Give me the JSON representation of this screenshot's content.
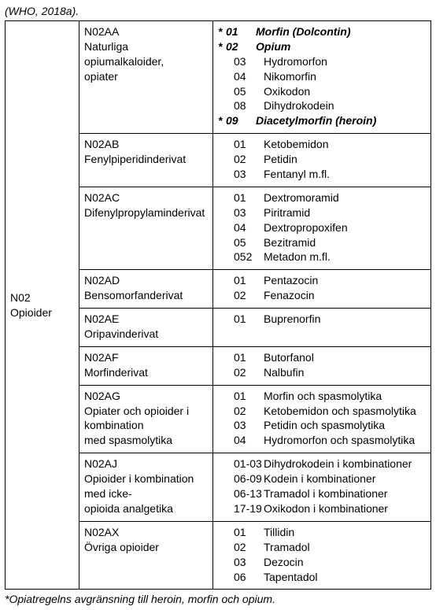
{
  "top_caption": "(WHO, 2018a).",
  "bottom_caption": "*Opiatregelns avgränsning till heroin, morfin och opium.",
  "left_group": {
    "code": "N02",
    "label": "Opioider"
  },
  "rows": [
    {
      "code": "N02AA",
      "desc_lines": [
        "Naturliga  opiumalkaloider,",
        "opiater"
      ],
      "items": [
        {
          "star": true,
          "code": "01",
          "name": "Morfin (Dolcontin)",
          "em": true
        },
        {
          "star": true,
          "code": "02",
          "name": "Opium",
          "em": true
        },
        {
          "star": false,
          "code": "03",
          "name": "Hydromorfon",
          "em": false
        },
        {
          "star": false,
          "code": "04",
          "name": "Nikomorfin",
          "em": false
        },
        {
          "star": false,
          "code": "05",
          "name": "Oxikodon",
          "em": false
        },
        {
          "star": false,
          "code": "08",
          "name": "Dihydrokodein",
          "em": false
        },
        {
          "star": true,
          "code": "09",
          "name": "Diacetylmorfin (heroin)",
          "em": true
        }
      ]
    },
    {
      "code": "N02AB",
      "desc_lines": [
        "Fenylpiperidinderivat"
      ],
      "items": [
        {
          "star": false,
          "code": "01",
          "name": "Ketobemidon",
          "em": false
        },
        {
          "star": false,
          "code": "02",
          "name": "Petidin",
          "em": false
        },
        {
          "star": false,
          "code": "03",
          "name": "Fentanyl  m.fl.",
          "em": false
        }
      ]
    },
    {
      "code": "N02AC",
      "desc_lines": [
        "Difenylpropylaminderivat"
      ],
      "items": [
        {
          "star": false,
          "code": "01",
          "name": "Dextromoramid",
          "em": false
        },
        {
          "star": false,
          "code": "03",
          "name": "Piritramid",
          "em": false
        },
        {
          "star": false,
          "code": "04",
          "name": "Dextropropoxifen",
          "em": false
        },
        {
          "star": false,
          "code": "05",
          "name": "Bezitramid",
          "em": false
        },
        {
          "star": false,
          "code": "052",
          "name": "Metadon m.fl.",
          "em": false
        }
      ]
    },
    {
      "code": "N02AD",
      "desc_lines": [
        "Bensomorfanderivat"
      ],
      "items": [
        {
          "star": false,
          "code": "01",
          "name": "Pentazocin",
          "em": false
        },
        {
          "star": false,
          "code": "02",
          "name": "Fenazocin",
          "em": false
        }
      ]
    },
    {
      "code": "N02AE",
      "desc_lines": [
        "Oripavinderivat"
      ],
      "items": [
        {
          "star": false,
          "code": "01",
          "name": "Buprenorfin",
          "em": false
        }
      ]
    },
    {
      "code": "N02AF",
      "desc_lines": [
        "Morfinderivat"
      ],
      "items": [
        {
          "star": false,
          "code": "01",
          "name": "Butorfanol",
          "em": false
        },
        {
          "star": false,
          "code": "02",
          "name": "Nalbufin",
          "em": false
        }
      ]
    },
    {
      "code": "N02AG",
      "desc_lines": [
        "Opiater och opioider i",
        "kombination",
        "med spasmolytika"
      ],
      "items": [
        {
          "star": false,
          "code": "01",
          "name": "Morfin och spasmolytika",
          "em": false
        },
        {
          "star": false,
          "code": "02",
          "name": "Ketobemidon och spasmolytika",
          "em": false
        },
        {
          "star": false,
          "code": "03",
          "name": "Petidin och spasmolytika",
          "em": false
        },
        {
          "star": false,
          "code": "04",
          "name": "Hydromorfon och spasmolytika",
          "em": false
        }
      ]
    },
    {
      "code": "N02AJ",
      "desc_lines": [
        "Opioider i kombination",
        "med icke-",
        "opioida analgetika"
      ],
      "items": [
        {
          "star": false,
          "code": "01-03",
          "name": "Dihydrokodein i kombinationer",
          "em": false
        },
        {
          "star": false,
          "code": "06-09",
          "name": "Kodein i kombinationer",
          "em": false
        },
        {
          "star": false,
          "code": "06-13",
          "name": "Tramadol i kombinationer",
          "em": false
        },
        {
          "star": false,
          "code": "17-19",
          "name": "Oxikodon i kombinationer",
          "em": false
        }
      ]
    },
    {
      "code": "N02AX",
      "desc_lines": [
        "Övriga opioider"
      ],
      "items": [
        {
          "star": false,
          "code": "01",
          "name": "Tillidin",
          "em": false
        },
        {
          "star": false,
          "code": "02",
          "name": "Tramadol",
          "em": false
        },
        {
          "star": false,
          "code": "03",
          "name": "Dezocin",
          "em": false
        },
        {
          "star": false,
          "code": "06",
          "name": "Tapentadol",
          "em": false
        }
      ]
    }
  ]
}
